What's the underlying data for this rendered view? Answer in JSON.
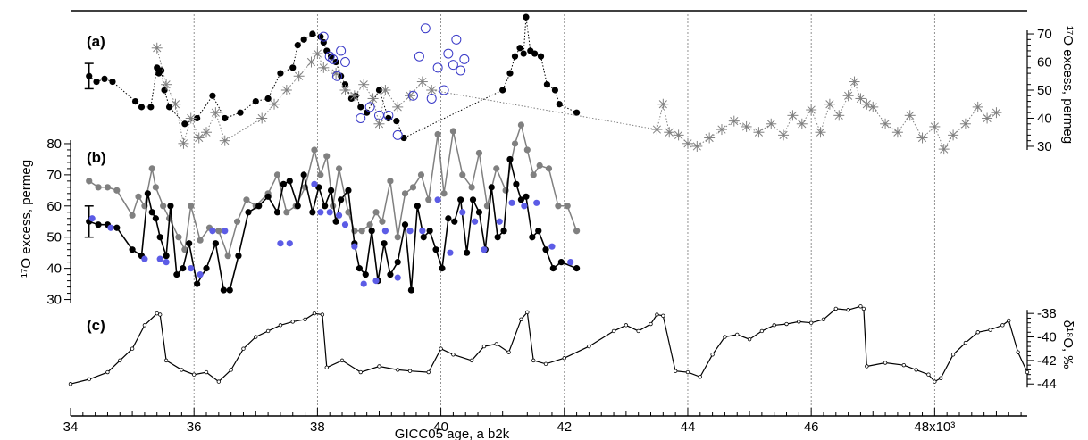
{
  "chart_data": {
    "type": "line",
    "x_axis": {
      "label": "GICC05 age, a b2k",
      "range": [
        34,
        49.5
      ],
      "ticks": [
        "34",
        "36",
        "38",
        "40",
        "42",
        "44",
        "46",
        "48x10³"
      ],
      "tick_values": [
        34,
        36,
        38,
        40,
        42,
        44,
        46,
        48
      ],
      "gridlines_at": [
        36,
        38,
        40,
        42,
        44,
        46,
        48
      ]
    },
    "panels": [
      {
        "label": "(a)",
        "axis": {
          "label": "¹⁷O excess, permeg",
          "ticks": [
            30,
            40,
            50,
            60,
            70
          ],
          "range": [
            23,
            77
          ],
          "side": "right"
        },
        "error_bar": {
          "x": 34.3,
          "y": 55,
          "half_range": 4.5
        },
        "series": [
          {
            "style": "black-filled-dotted",
            "color": "#000000",
            "x": [
              34.3,
              34.42,
              34.55,
              34.68,
              35.05,
              35.15,
              35.3,
              35.4,
              35.43,
              35.47,
              35.52,
              35.6,
              35.85,
              36.05,
              36.3,
              36.5,
              36.75,
              37.0,
              37.2,
              37.4,
              37.6,
              37.68,
              37.78,
              37.92,
              38.05,
              38.1,
              38.15,
              38.22,
              38.3,
              38.38,
              38.45,
              38.55,
              38.62,
              38.7,
              38.8,
              39.0,
              39.15,
              39.28,
              39.4,
              41.0,
              41.12,
              41.2,
              41.28,
              41.34,
              41.38,
              41.45,
              41.52,
              41.62,
              41.72,
              41.85,
              41.92,
              42.2
            ],
            "y": [
              55,
              53,
              54,
              53,
              46,
              44,
              44,
              58,
              56,
              57,
              50,
              44,
              38,
              40,
              48,
              40,
              42,
              46,
              47,
              56,
              58,
              66,
              68,
              70,
              69,
              67,
              64,
              62,
              60,
              55,
              52,
              47,
              48,
              44,
              42,
              50,
              40,
              39,
              33,
              50,
              56,
              62,
              65,
              63,
              76,
              64,
              63,
              62,
              52,
              50,
              45,
              42
            ]
          },
          {
            "style": "grey-star-dotted",
            "color": "#808080",
            "x": [
              35.4,
              35.55,
              35.7,
              35.83,
              35.95,
              36.08,
              36.2,
              36.35,
              36.5,
              37.1,
              37.3,
              37.5,
              37.7,
              37.9,
              38.0,
              38.1,
              38.3,
              38.45,
              38.6,
              38.75,
              38.9,
              39.0,
              39.1,
              39.3,
              39.5,
              39.7,
              39.85,
              43.5,
              43.6,
              43.7,
              43.85,
              44.0,
              44.15,
              44.35,
              44.55,
              44.75,
              44.95,
              45.15,
              45.35,
              45.55,
              45.7,
              45.85,
              46.0,
              46.15,
              46.3,
              46.45,
              46.6,
              46.7,
              46.8,
              46.9,
              47.0,
              47.2,
              47.4,
              47.6,
              47.8,
              48.0,
              48.15,
              48.3,
              48.5,
              48.7,
              48.85,
              49.0
            ],
            "y": [
              65,
              52,
              45,
              31,
              40,
              33,
              35,
              42,
              32,
              40,
              45,
              50,
              55,
              60,
              63,
              58,
              56,
              50,
              48,
              52,
              47,
              38,
              50,
              44,
              48,
              53,
              50,
              36,
              45,
              35,
              34,
              31,
              30,
              33,
              36,
              39,
              37,
              35,
              38,
              34,
              41,
              38,
              43,
              35,
              45,
              41,
              48,
              53,
              47,
              45,
              44,
              38,
              35,
              41,
              33,
              37,
              29,
              34,
              38,
              44,
              40,
              42
            ]
          },
          {
            "style": "blue-open-circle",
            "color": "#3a3ac8",
            "x": [
              38.1,
              38.2,
              38.25,
              38.32,
              38.38,
              38.45,
              38.7,
              38.85,
              39.0,
              39.15,
              39.3,
              39.55,
              39.65,
              39.75,
              39.85,
              39.95,
              40.05,
              40.12,
              40.2,
              40.25,
              40.32,
              40.38
            ],
            "y": [
              69,
              62,
              61,
              55,
              64,
              60,
              40,
              44,
              41,
              41,
              34,
              48,
              62,
              72,
              47,
              58,
              50,
              63,
              59,
              68,
              57,
              61
            ]
          }
        ]
      },
      {
        "label": "(b)",
        "axis": {
          "label": "¹⁷O excess, permeg",
          "ticks": [
            30,
            40,
            50,
            60,
            70,
            80
          ],
          "range": [
            23,
            86
          ],
          "side": "left"
        },
        "error_bar": {
          "x": 34.3,
          "y": 55,
          "half_range": 5
        },
        "series": [
          {
            "style": "grey-line-markers",
            "color": "#808080",
            "x": [
              34.3,
              34.45,
              34.6,
              34.75,
              35.0,
              35.1,
              35.2,
              35.32,
              35.38,
              35.5,
              35.6,
              35.75,
              35.85,
              35.95,
              36.1,
              36.25,
              36.4,
              36.55,
              36.7,
              36.85,
              37.0,
              37.2,
              37.35,
              37.5,
              37.65,
              37.8,
              37.95,
              38.05,
              38.15,
              38.25,
              38.35,
              38.5,
              38.6,
              38.72,
              38.85,
              38.95,
              39.05,
              39.18,
              39.3,
              39.42,
              39.55,
              39.68,
              39.8,
              39.95,
              40.05,
              40.2,
              40.35,
              40.5,
              40.62,
              40.75,
              40.9,
              41.05,
              41.2,
              41.3,
              41.4,
              41.5,
              41.6,
              41.75,
              41.9,
              42.05,
              42.2
            ],
            "y": [
              68,
              66,
              66,
              65,
              57,
              63,
              60,
              72,
              66,
              60,
              56,
              50,
              46,
              60,
              49,
              53,
              52,
              44,
              55,
              62,
              60,
              64,
              70,
              58,
              60,
              66,
              78,
              70,
              76,
              60,
              72,
              58,
              52,
              52,
              54,
              58,
              55,
              68,
              50,
              64,
              66,
              70,
              62,
              83,
              64,
              84,
              70,
              66,
              77,
              60,
              72,
              65,
              80,
              86,
              78,
              70,
              73,
              72,
              60,
              60,
              52
            ]
          },
          {
            "style": "black-line-markers",
            "color": "#000000",
            "x": [
              34.3,
              34.45,
              34.6,
              34.75,
              35.0,
              35.15,
              35.25,
              35.32,
              35.38,
              35.45,
              35.55,
              35.62,
              35.72,
              35.82,
              35.92,
              36.05,
              36.2,
              36.35,
              36.48,
              36.58,
              36.72,
              36.88,
              37.05,
              37.2,
              37.35,
              37.45,
              37.55,
              37.68,
              37.78,
              37.92,
              38.02,
              38.12,
              38.22,
              38.3,
              38.38,
              38.5,
              38.6,
              38.68,
              38.78,
              38.88,
              38.98,
              39.08,
              39.18,
              39.3,
              39.42,
              39.52,
              39.62,
              39.72,
              39.82,
              39.92,
              40.02,
              40.12,
              40.22,
              40.32,
              40.42,
              40.52,
              40.62,
              40.72,
              40.82,
              40.92,
              41.02,
              41.12,
              41.22,
              41.3,
              41.38,
              41.48,
              41.58,
              41.7,
              41.82,
              41.95,
              42.2
            ],
            "y": [
              55,
              54,
              54,
              53,
              46,
              44,
              64,
              58,
              56,
              50,
              44,
              60,
              38,
              40,
              48,
              35,
              40,
              48,
              33,
              33,
              44,
              58,
              60,
              63,
              58,
              67,
              68,
              60,
              70,
              58,
              66,
              60,
              65,
              55,
              62,
              65,
              48,
              40,
              38,
              52,
              36,
              48,
              38,
              42,
              54,
              33,
              60,
              50,
              52,
              46,
              40,
              56,
              55,
              62,
              45,
              62,
              58,
              46,
              66,
              50,
              52,
              75,
              67,
              62,
              63,
              50,
              52,
              46,
              40,
              42,
              40
            ]
          },
          {
            "style": "blue-markers",
            "color": "#5c5ce6",
            "x": [
              34.35,
              34.65,
              35.2,
              35.45,
              35.55,
              35.95,
              36.1,
              36.3,
              36.5,
              37.4,
              37.55,
              37.95,
              38.05,
              38.2,
              38.35,
              38.45,
              38.6,
              38.75,
              38.95,
              39.1,
              39.3,
              39.5,
              39.7,
              39.95,
              40.15,
              40.35,
              40.55,
              40.7,
              40.95,
              41.15,
              41.35,
              41.55,
              41.8,
              42.1
            ],
            "y": [
              56,
              53,
              43,
              43,
              42,
              40,
              38,
              52,
              52,
              48,
              48,
              67,
              58,
              58,
              57,
              54,
              47,
              35,
              36,
              52,
              37,
              52,
              52,
              62,
              45,
              58,
              55,
              46,
              55,
              61,
              60,
              61,
              47,
              42
            ]
          }
        ]
      },
      {
        "label": "(c)",
        "axis": {
          "label": "δ¹⁸O, ‰",
          "ticks": [
            -38,
            -40,
            -42,
            -44
          ],
          "range": [
            -45.5,
            -37
          ],
          "side": "right"
        },
        "series": [
          {
            "style": "black-small-markers",
            "color": "#000000",
            "x": [
              34.0,
              34.3,
              34.6,
              34.8,
              35.0,
              35.2,
              35.4,
              35.45,
              35.55,
              35.8,
              36.0,
              36.2,
              36.4,
              36.6,
              36.8,
              37.0,
              37.2,
              37.4,
              37.6,
              37.8,
              37.95,
              38.08,
              38.15,
              38.4,
              38.7,
              39.0,
              39.3,
              39.5,
              39.8,
              40.0,
              40.2,
              40.5,
              40.7,
              40.9,
              41.1,
              41.3,
              41.4,
              41.5,
              41.7,
              42.0,
              42.4,
              42.8,
              43.0,
              43.2,
              43.4,
              43.5,
              43.6,
              43.8,
              44.0,
              44.2,
              44.4,
              44.6,
              44.8,
              45.0,
              45.2,
              45.4,
              45.6,
              45.8,
              46.0,
              46.2,
              46.4,
              46.6,
              46.8,
              46.85,
              46.9,
              47.2,
              47.5,
              47.7,
              47.9,
              48.0,
              48.1,
              48.3,
              48.5,
              48.7,
              48.9,
              49.1,
              49.2,
              49.35,
              49.5
            ],
            "y": [
              -44,
              -43.6,
              -43,
              -42,
              -41,
              -39,
              -38,
              -38.1,
              -42,
              -42.8,
              -43.2,
              -43,
              -43.8,
              -42.8,
              -41,
              -40,
              -39.5,
              -39,
              -38.7,
              -38.5,
              -38,
              -38.1,
              -42.6,
              -42,
              -43,
              -42.5,
              -42.8,
              -42.9,
              -43,
              -41,
              -41.5,
              -42,
              -40.8,
              -40.6,
              -41.3,
              -38.5,
              -37.9,
              -42,
              -42.3,
              -41.8,
              -40.8,
              -39.5,
              -39,
              -39.5,
              -38.9,
              -38.1,
              -38.2,
              -42.9,
              -43,
              -43.4,
              -41.5,
              -40,
              -39.8,
              -40.2,
              -39.5,
              -39,
              -38.9,
              -38.7,
              -38.8,
              -38.5,
              -37.6,
              -37.7,
              -37.4,
              -37.6,
              -42.5,
              -42.2,
              -42.4,
              -42.8,
              -43.2,
              -43.8,
              -43.5,
              -41.5,
              -40.5,
              -39.6,
              -39.4,
              -39,
              -38.6,
              -41.3,
              -43
            ]
          }
        ]
      }
    ]
  }
}
